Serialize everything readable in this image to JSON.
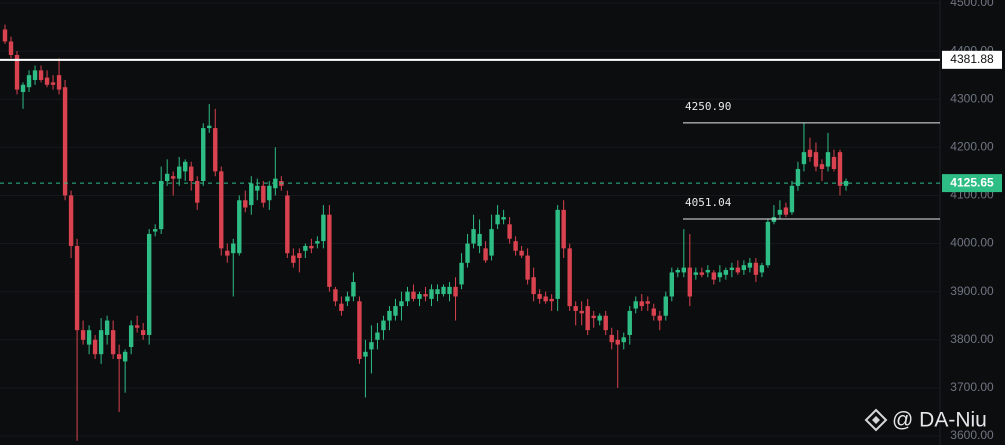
{
  "chart_data": {
    "type": "candlestick",
    "up_color": "#2ebd85",
    "down_color": "#d9424f",
    "ylim": [
      3600,
      4500
    ],
    "yticks": [
      {
        "value": 3600,
        "label": "3600.00"
      },
      {
        "value": 3700,
        "label": "3700.00"
      },
      {
        "value": 3800,
        "label": "3800.00"
      },
      {
        "value": 3900,
        "label": "3900.00"
      },
      {
        "value": 4000,
        "label": "4000.00"
      },
      {
        "value": 4100,
        "label": "4100.00"
      },
      {
        "value": 4200,
        "label": "4200.00"
      },
      {
        "value": 4300,
        "label": "4300.00"
      },
      {
        "value": 4400,
        "label": "4400.00"
      },
      {
        "value": 4500,
        "label": "4500.00"
      }
    ],
    "grid": true,
    "open": [
      4445,
      4420,
      4392,
      4315,
      4325,
      4340,
      4360,
      4345,
      4335,
      4350,
      4325,
      4100,
      3995,
      3820,
      3790,
      3800,
      3770,
      3810,
      3820,
      3770,
      3755,
      3785,
      3830,
      3820,
      3810,
      4025,
      4030,
      4130,
      4140,
      4135,
      4150,
      4160,
      4130,
      4130,
      4240,
      4240,
      4150,
      3985,
      3980,
      3980,
      4090,
      4080,
      4110,
      4120,
      4090,
      4115,
      4130,
      4100,
      3975,
      3980,
      3985,
      3995,
      4000,
      4005,
      4060,
      3905,
      3875,
      3880,
      3890,
      3880,
      3765,
      3780,
      3800,
      3820,
      3840,
      3850,
      3870,
      3880,
      3900,
      3885,
      3895,
      3885,
      3895,
      3895,
      3895,
      3910,
      3915,
      3960,
      4000,
      3995,
      3990,
      3975,
      4040,
      4050,
      4040,
      4005,
      3985,
      3975,
      3930,
      3895,
      3890,
      3885,
      3885,
      4070,
      3990,
      3870,
      3860,
      3870,
      3850,
      3840,
      3850,
      3810,
      3800,
      3795,
      3810,
      3865,
      3880,
      3880,
      3865,
      3850,
      3850,
      3890,
      3940,
      3940,
      3950,
      3935,
      3940,
      3940,
      3940,
      3930,
      3935,
      3945,
      3950,
      3945,
      3950,
      3960,
      3940,
      3955,
      4045,
      4060,
      4075,
      4065,
      4120,
      4165,
      4195,
      4190,
      4165,
      4160,
      4180,
      4190,
      4120
    ],
    "high": [
      4455,
      4430,
      4400,
      4335,
      4360,
      4370,
      4370,
      4360,
      4350,
      4385,
      4340,
      4110,
      4010,
      3840,
      3830,
      3810,
      3845,
      3850,
      3840,
      3790,
      3780,
      3840,
      3850,
      3835,
      4030,
      4040,
      4160,
      4175,
      4150,
      4180,
      4175,
      4170,
      4140,
      4250,
      4290,
      4280,
      4160,
      4000,
      4010,
      4100,
      4110,
      4140,
      4135,
      4130,
      4130,
      4200,
      4140,
      4110,
      3990,
      3990,
      4000,
      4010,
      4015,
      4080,
      4080,
      3910,
      3890,
      3900,
      3940,
      3890,
      3800,
      3830,
      3835,
      3850,
      3870,
      3885,
      3900,
      3910,
      3915,
      3900,
      3910,
      3915,
      3915,
      3915,
      3920,
      3930,
      3980,
      4020,
      4060,
      4050,
      4005,
      4060,
      4080,
      4070,
      4055,
      4015,
      3995,
      3990,
      3950,
      3905,
      3900,
      3895,
      4080,
      4090,
      4000,
      3880,
      3880,
      3885,
      3860,
      3855,
      3860,
      3825,
      3820,
      3815,
      3870,
      3890,
      3895,
      3890,
      3875,
      3860,
      3900,
      3950,
      3950,
      4030,
      4020,
      3950,
      3950,
      3955,
      3945,
      3955,
      3950,
      3960,
      3965,
      3965,
      3970,
      3970,
      3960,
      4050,
      4080,
      4090,
      4085,
      4130,
      4170,
      4250,
      4220,
      4210,
      4175,
      4230,
      4195,
      4195,
      4135
    ],
    "low": [
      4415,
      4385,
      4310,
      4280,
      4315,
      4330,
      4335,
      4325,
      4320,
      4310,
      4090,
      3970,
      3590,
      3790,
      3770,
      3760,
      3750,
      3790,
      3760,
      3650,
      3690,
      3770,
      3815,
      3800,
      3790,
      4015,
      4020,
      4120,
      4100,
      4120,
      4130,
      4110,
      4070,
      4120,
      4230,
      4140,
      3975,
      3960,
      3890,
      3975,
      4065,
      4060,
      4090,
      4075,
      4070,
      4100,
      4110,
      3970,
      3950,
      3940,
      3970,
      3980,
      3990,
      3990,
      3900,
      3870,
      3850,
      3870,
      3880,
      3750,
      3680,
      3730,
      3780,
      3800,
      3820,
      3840,
      3840,
      3870,
      3880,
      3870,
      3880,
      3870,
      3880,
      3890,
      3880,
      3840,
      3905,
      3950,
      3990,
      3980,
      3960,
      3965,
      4030,
      4040,
      4000,
      3975,
      3970,
      3915,
      3880,
      3875,
      3875,
      3860,
      3860,
      3970,
      3860,
      3830,
      3830,
      3810,
      3825,
      3830,
      3810,
      3780,
      3700,
      3780,
      3790,
      3855,
      3860,
      3860,
      3840,
      3820,
      3840,
      3880,
      3930,
      3930,
      3870,
      3925,
      3930,
      3930,
      3915,
      3920,
      3925,
      3930,
      3935,
      3935,
      3940,
      3920,
      3930,
      3950,
      4040,
      4050,
      4055,
      4060,
      4110,
      4150,
      4170,
      4150,
      4130,
      4150,
      4150,
      4100,
      4110
    ],
    "close": [
      4420,
      4392,
      4320,
      4330,
      4350,
      4360,
      4340,
      4330,
      4330,
      4320,
      4100,
      3995,
      3820,
      3800,
      3820,
      3770,
      3820,
      3840,
      3770,
      3760,
      3775,
      3830,
      3825,
      3810,
      4020,
      4030,
      4130,
      4145,
      4135,
      4160,
      4170,
      4130,
      4085,
      4240,
      4245,
      4150,
      3990,
      3975,
      4000,
      4090,
      4075,
      4125,
      4120,
      4085,
      4120,
      4135,
      4120,
      3980,
      3960,
      3970,
      3995,
      3990,
      4005,
      4060,
      3910,
      3880,
      3860,
      3890,
      3920,
      3760,
      3775,
      3795,
      3815,
      3840,
      3860,
      3870,
      3880,
      3900,
      3885,
      3895,
      3890,
      3905,
      3905,
      3910,
      3910,
      3890,
      3960,
      4000,
      4030,
      4020,
      3965,
      4030,
      4060,
      4055,
      4010,
      3985,
      3975,
      3925,
      3895,
      3885,
      3880,
      3880,
      4070,
      3990,
      3870,
      3860,
      3855,
      3820,
      3845,
      3850,
      3820,
      3795,
      3790,
      3805,
      3860,
      3880,
      3870,
      3875,
      3850,
      3840,
      3890,
      3940,
      3945,
      3950,
      3890,
      3940,
      3935,
      3945,
      3925,
      3940,
      3945,
      3950,
      3940,
      3955,
      3960,
      3935,
      3955,
      4045,
      4055,
      4070,
      4060,
      4120,
      4155,
      4190,
      4180,
      4160,
      4155,
      4190,
      4155,
      4120,
      4130
    ],
    "mark_line": {
      "value": 4381.88,
      "color": "#ffffff"
    },
    "last_price": {
      "value": 4125.65,
      "color": "#2ebd85"
    },
    "levels": [
      {
        "value": 4250.9,
        "label": "4250.90"
      },
      {
        "value": 4051.04,
        "label": "4051.04"
      }
    ],
    "watermark": "@ DA-Niu"
  }
}
